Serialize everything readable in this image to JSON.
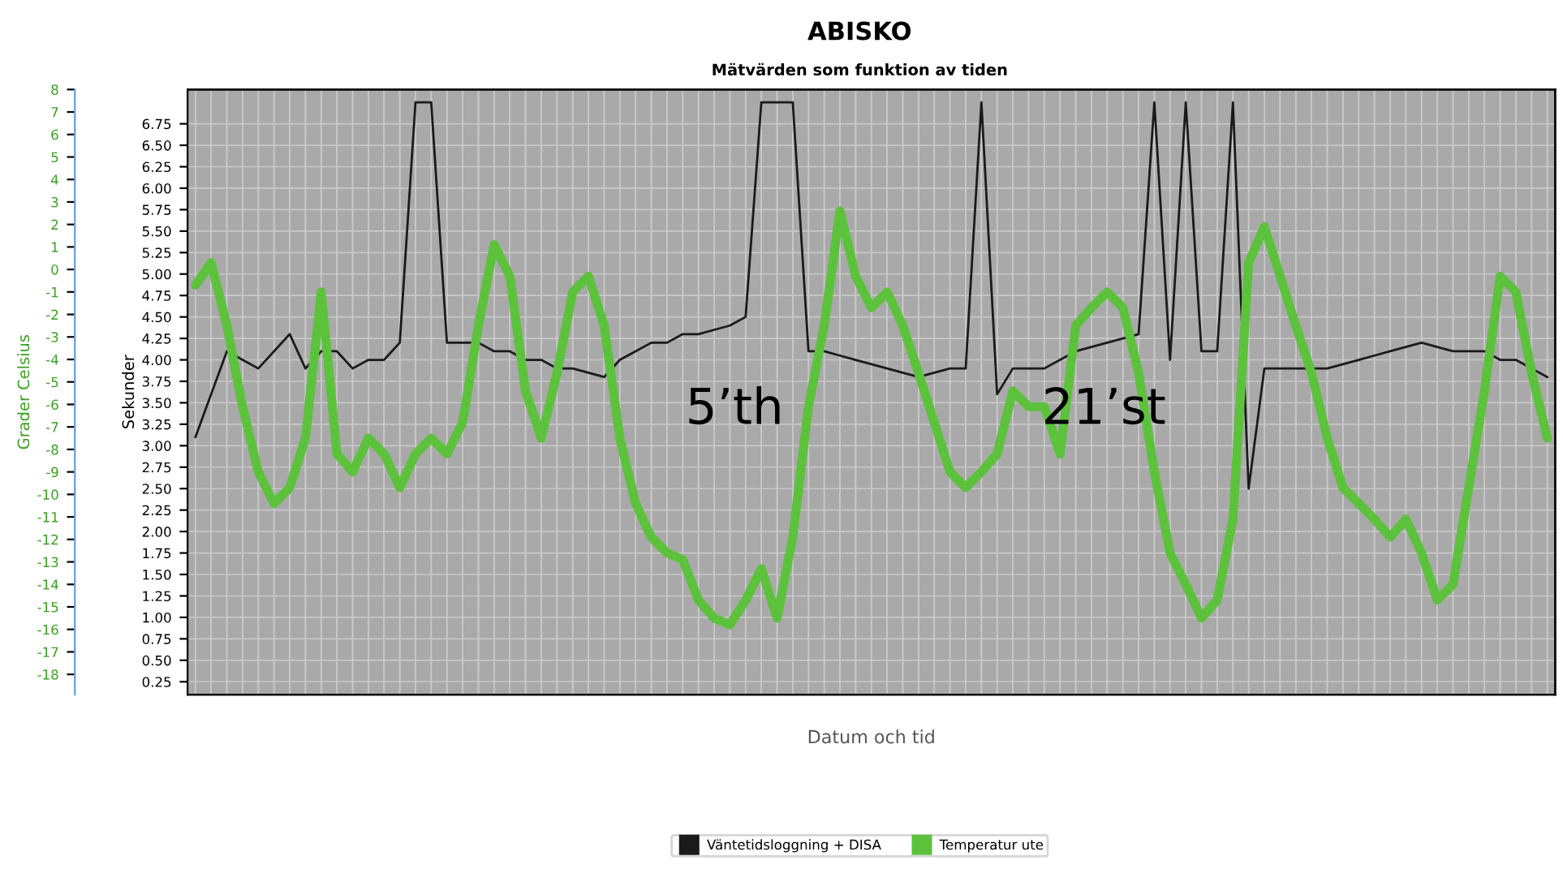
{
  "chart_data": {
    "type": "line",
    "title": "ABISKO",
    "subtitle": "Mätvärden som funktion av tiden",
    "xlabel": "Datum och tid",
    "ylabel": "Sekunder",
    "y2label": "Grader Celsius",
    "categories": [
      null,
      null,
      null,
      null,
      null,
      null,
      null,
      null,
      null,
      null,
      null,
      null,
      null,
      null,
      null,
      null,
      null,
      null,
      null,
      null,
      null,
      null,
      null,
      null,
      null,
      null,
      null,
      null,
      null,
      null,
      null,
      null,
      null,
      null,
      null,
      null,
      null,
      null,
      null,
      null,
      null,
      null,
      null,
      null,
      null,
      null,
      null,
      null,
      null,
      null,
      null,
      null,
      null,
      null,
      null,
      null,
      null,
      null,
      null,
      null,
      null,
      null,
      null,
      null,
      null,
      null,
      null,
      null,
      null,
      null,
      null,
      null,
      null,
      null,
      null,
      null,
      null,
      null,
      null,
      null,
      null,
      null,
      null,
      null,
      null,
      null,
      null
    ],
    "series": [
      {
        "name": "Väntetidsloggning + DISA",
        "color": "#1a1a1a",
        "values": [
          3.1,
          3.6,
          4.1,
          4.0,
          3.9,
          4.1,
          4.3,
          3.9,
          4.1,
          4.1,
          3.9,
          4.0,
          4.0,
          4.2,
          7.0,
          7.0,
          4.2,
          4.2,
          4.2,
          4.1,
          4.1,
          4.0,
          4.0,
          3.9,
          3.9,
          3.85,
          3.8,
          4.0,
          4.1,
          4.2,
          4.2,
          4.3,
          4.3,
          4.35,
          4.4,
          4.5,
          7.0,
          7.0,
          7.0,
          4.1,
          4.1,
          4.05,
          4.0,
          3.95,
          3.9,
          3.85,
          3.8,
          3.85,
          3.9,
          3.9,
          7.0,
          3.6,
          3.9,
          3.9,
          3.9,
          4.0,
          4.1,
          4.15,
          4.2,
          4.25,
          4.3,
          7.0,
          4.0,
          7.0,
          4.1,
          4.1,
          7.0,
          2.5,
          3.9,
          3.9,
          3.9,
          3.9,
          3.9,
          3.95,
          4.0,
          4.05,
          4.1,
          4.15,
          4.2,
          4.15,
          4.1,
          4.1,
          4.1,
          4.0,
          4.0,
          3.9,
          3.8
        ]
      },
      {
        "name": "Temperatur ute",
        "color": "#5cc23c",
        "axis": "y2",
        "values": [
          -0.7,
          0.3,
          -2.5,
          -6.1,
          -9.0,
          -10.4,
          -9.7,
          -7.5,
          -1.0,
          -8.2,
          -9.0,
          -7.5,
          -8.2,
          -9.7,
          -8.2,
          -7.5,
          -8.2,
          -6.8,
          -2.5,
          1.1,
          -0.3,
          -5.4,
          -7.5,
          -4.6,
          -1.0,
          -0.3,
          -2.5,
          -7.5,
          -10.4,
          -11.9,
          -12.6,
          -12.9,
          -14.7,
          -15.5,
          -15.8,
          -14.7,
          -13.3,
          -15.5,
          -11.9,
          -6.1,
          -2.5,
          2.6,
          -0.3,
          -1.7,
          -1.0,
          -2.5,
          -4.6,
          -6.8,
          -9.0,
          -9.7,
          -9.0,
          -8.2,
          -5.4,
          -6.1,
          -6.1,
          -8.2,
          -2.5,
          -1.7,
          -1.0,
          -1.7,
          -4.6,
          -9.0,
          -12.6,
          -14.0,
          -15.5,
          -14.7,
          -11.1,
          0.3,
          1.9,
          -0.3,
          -2.5,
          -4.6,
          -7.5,
          -9.7,
          -10.4,
          -11.1,
          -11.9,
          -11.1,
          -12.6,
          -14.7,
          -14.0,
          -9.7,
          -5.4,
          -0.3,
          -1.0,
          -4.6,
          -7.5
        ]
      }
    ],
    "ylim": [
      0.1,
      7.15
    ],
    "yticks": [
      {
        "value": 0.25,
        "label": "0.25"
      },
      {
        "value": 0.5,
        "label": "0.50"
      },
      {
        "value": 0.75,
        "label": "0.75"
      },
      {
        "value": 1,
        "label": "1.00"
      },
      {
        "value": 1.25,
        "label": "1.25"
      },
      {
        "value": 1.5,
        "label": "1.50"
      },
      {
        "value": 1.75,
        "label": "1.75"
      },
      {
        "value": 2,
        "label": "2.00"
      },
      {
        "value": 2.25,
        "label": "2.25"
      },
      {
        "value": 2.5,
        "label": "2.50"
      },
      {
        "value": 2.75,
        "label": "2.75"
      },
      {
        "value": 3,
        "label": "3.00"
      },
      {
        "value": 3.25,
        "label": "3.25"
      },
      {
        "value": 3.5,
        "label": "3.50"
      },
      {
        "value": 3.75,
        "label": "3.75"
      },
      {
        "value": 4,
        "label": "4.00"
      },
      {
        "value": 4.25,
        "label": "4.25"
      },
      {
        "value": 4.5,
        "label": "4.50"
      },
      {
        "value": 4.75,
        "label": "4.75"
      },
      {
        "value": 5,
        "label": "5.00"
      },
      {
        "value": 5.25,
        "label": "5.25"
      },
      {
        "value": 5.5,
        "label": "5.50"
      },
      {
        "value": 5.75,
        "label": "5.75"
      },
      {
        "value": 6,
        "label": "6.00"
      },
      {
        "value": 6.25,
        "label": "6.25"
      },
      {
        "value": 6.5,
        "label": "6.50"
      },
      {
        "value": 6.75,
        "label": "6.75"
      }
    ],
    "y2lim": [
      -18.9,
      8
    ],
    "y2ticks": [
      -18,
      -17,
      -16,
      -15,
      -14,
      -13,
      -12,
      -11,
      -10,
      -9,
      -8,
      -7,
      -6,
      -5,
      -4,
      -3,
      -2,
      -1,
      0,
      1,
      2,
      3,
      4,
      5,
      6,
      7,
      8
    ],
    "annotations": [
      "5’th",
      "21’st"
    ],
    "grid": true,
    "legend": "bottom",
    "marker": "none",
    "line_style": "solid"
  }
}
